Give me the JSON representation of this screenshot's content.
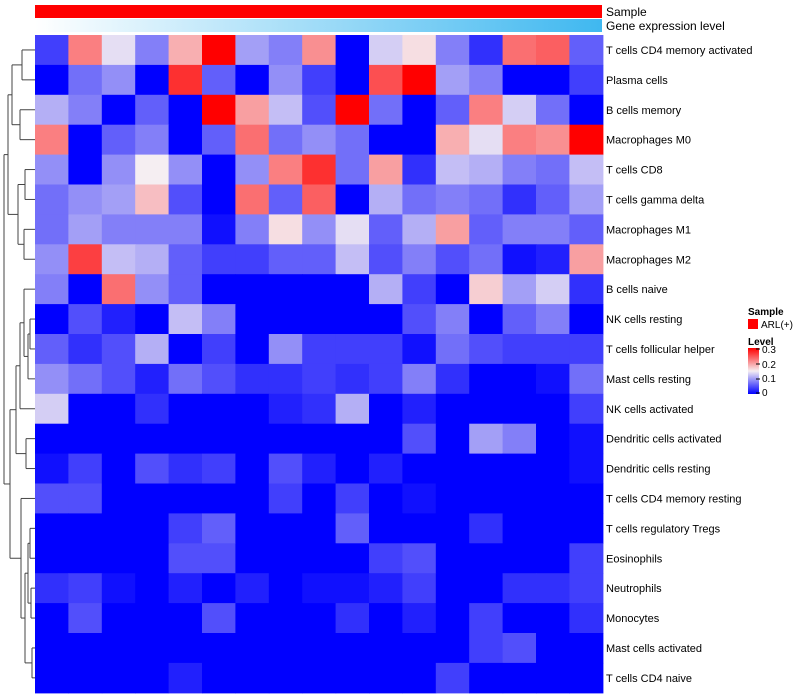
{
  "chart_data": {
    "type": "heatmap",
    "annotation_labels": {
      "sample": "Sample",
      "gene_expression": "Gene expression level"
    },
    "sample_annotation_color": "#ff0000",
    "gene_expression_gradient": [
      "#ffffff",
      "#3fb8f0"
    ],
    "rows": [
      "T cells CD4 memory activated",
      "Plasma cells",
      "B cells memory",
      "Macrophages M0",
      "T cells CD8",
      "T cells gamma delta",
      "Macrophages M1",
      "Macrophages M2",
      "B cells naive",
      "NK cells resting",
      "T cells follicular helper",
      "Mast cells resting",
      "NK cells activated",
      "Dendritic cells activated",
      "Dendritic cells resting",
      "T cells CD4 memory resting",
      "T cells regulatory  Tregs",
      "Eosinophils",
      "Neutrophils",
      "Monocytes",
      "Mast cells activated",
      "T cells CD4 naive"
    ],
    "num_samples": 17,
    "values": [
      [
        0.04,
        0.22,
        0.14,
        0.08,
        0.19,
        0.3,
        0.1,
        0.08,
        0.21,
        0.0,
        0.13,
        0.16,
        0.08,
        0.03,
        0.23,
        0.24,
        0.06
      ],
      [
        0.0,
        0.07,
        0.09,
        0.0,
        0.27,
        0.06,
        0.0,
        0.09,
        0.04,
        0.0,
        0.25,
        0.3,
        0.1,
        0.08,
        0.0,
        0.0,
        0.04
      ],
      [
        0.11,
        0.08,
        0.0,
        0.06,
        0.0,
        0.3,
        0.2,
        0.12,
        0.05,
        0.3,
        0.07,
        0.0,
        0.06,
        0.22,
        0.13,
        0.07,
        0.0
      ],
      [
        0.22,
        0.0,
        0.06,
        0.08,
        0.0,
        0.06,
        0.23,
        0.07,
        0.09,
        0.07,
        0.0,
        0.0,
        0.19,
        0.14,
        0.22,
        0.21,
        0.3
      ],
      [
        0.09,
        0.0,
        0.09,
        0.15,
        0.09,
        0.0,
        0.09,
        0.22,
        0.27,
        0.07,
        0.2,
        0.03,
        0.12,
        0.11,
        0.08,
        0.07,
        0.12
      ],
      [
        0.07,
        0.09,
        0.1,
        0.18,
        0.05,
        0.0,
        0.23,
        0.06,
        0.24,
        0.0,
        0.11,
        0.07,
        0.08,
        0.07,
        0.03,
        0.06,
        0.1
      ],
      [
        0.07,
        0.1,
        0.08,
        0.08,
        0.08,
        0.01,
        0.08,
        0.16,
        0.09,
        0.14,
        0.06,
        0.11,
        0.2,
        0.06,
        0.08,
        0.08,
        0.06
      ],
      [
        0.09,
        0.26,
        0.12,
        0.11,
        0.06,
        0.04,
        0.04,
        0.06,
        0.06,
        0.12,
        0.05,
        0.08,
        0.05,
        0.07,
        0.01,
        0.02,
        0.2
      ],
      [
        0.08,
        0.0,
        0.23,
        0.09,
        0.06,
        0.0,
        0.0,
        0.0,
        0.0,
        0.0,
        0.11,
        0.04,
        0.0,
        0.17,
        0.1,
        0.13,
        0.03
      ],
      [
        0.0,
        0.05,
        0.02,
        0.0,
        0.12,
        0.08,
        0.0,
        0.0,
        0.0,
        0.0,
        0.0,
        0.05,
        0.08,
        0.0,
        0.06,
        0.08,
        0.0
      ],
      [
        0.06,
        0.03,
        0.05,
        0.11,
        0.0,
        0.04,
        0.0,
        0.09,
        0.04,
        0.04,
        0.04,
        0.01,
        0.07,
        0.05,
        0.04,
        0.04,
        0.04
      ],
      [
        0.09,
        0.07,
        0.05,
        0.02,
        0.07,
        0.05,
        0.03,
        0.03,
        0.04,
        0.03,
        0.04,
        0.08,
        0.03,
        0.0,
        0.0,
        0.01,
        0.07
      ],
      [
        0.13,
        0.0,
        0.0,
        0.03,
        0.0,
        0.0,
        0.0,
        0.02,
        0.03,
        0.11,
        0.0,
        0.02,
        0.0,
        0.0,
        0.0,
        0.0,
        0.04
      ],
      [
        0.0,
        0.0,
        0.0,
        0.0,
        0.0,
        0.0,
        0.0,
        0.0,
        0.0,
        0.0,
        0.0,
        0.05,
        0.0,
        0.1,
        0.08,
        0.0,
        0.01
      ],
      [
        0.01,
        0.04,
        0.0,
        0.05,
        0.03,
        0.04,
        0.0,
        0.05,
        0.02,
        0.0,
        0.02,
        0.0,
        0.0,
        0.0,
        0.0,
        0.0,
        0.01
      ],
      [
        0.05,
        0.05,
        0.0,
        0.0,
        0.0,
        0.0,
        0.0,
        0.04,
        0.0,
        0.04,
        0.0,
        0.01,
        0.0,
        0.0,
        0.0,
        0.0,
        0.0
      ],
      [
        0.0,
        0.0,
        0.0,
        0.0,
        0.04,
        0.06,
        0.0,
        0.0,
        0.0,
        0.06,
        0.0,
        0.0,
        0.0,
        0.03,
        0.0,
        0.0,
        0.0
      ],
      [
        0.0,
        0.0,
        0.0,
        0.0,
        0.05,
        0.05,
        0.0,
        0.0,
        0.0,
        0.0,
        0.04,
        0.05,
        0.0,
        0.0,
        0.0,
        0.0,
        0.04
      ],
      [
        0.03,
        0.04,
        0.01,
        0.0,
        0.02,
        0.0,
        0.02,
        0.0,
        0.01,
        0.01,
        0.02,
        0.04,
        0.0,
        0.0,
        0.03,
        0.03,
        0.04
      ],
      [
        0.0,
        0.05,
        0.0,
        0.0,
        0.0,
        0.05,
        0.0,
        0.0,
        0.0,
        0.03,
        0.0,
        0.02,
        0.0,
        0.04,
        0.0,
        0.0,
        0.03
      ],
      [
        0.0,
        0.0,
        0.0,
        0.0,
        0.0,
        0.0,
        0.0,
        0.0,
        0.0,
        0.0,
        0.0,
        0.0,
        0.0,
        0.04,
        0.05,
        0.0,
        0.0
      ],
      [
        0.0,
        0.0,
        0.0,
        0.0,
        0.02,
        0.0,
        0.0,
        0.0,
        0.0,
        0.0,
        0.0,
        0.0,
        0.04,
        0.0,
        0.0,
        0.0,
        0.0
      ]
    ],
    "color_scale": {
      "min": 0,
      "mid": 0.15,
      "max": 0.3,
      "low_color": "#0000ff",
      "mid_color": "#f5eef2",
      "high_color": "#ff0000"
    },
    "legend": {
      "sample_title": "Sample",
      "sample_entry": "ARL(+)",
      "level_title": "Level",
      "level_ticks": [
        "0.3",
        "0.2",
        "0.1",
        "0"
      ]
    }
  }
}
